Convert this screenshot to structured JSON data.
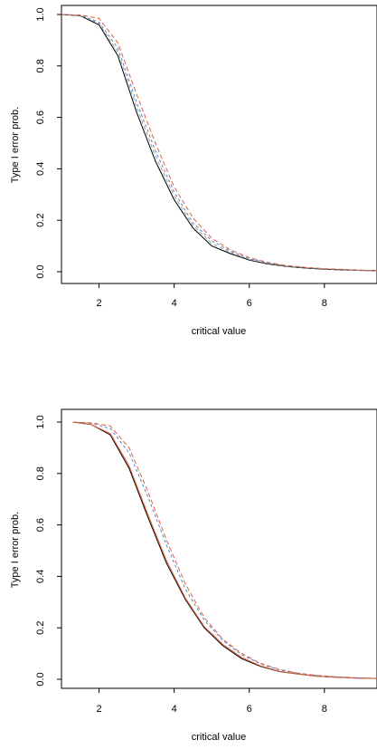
{
  "chart_data": [
    {
      "type": "line",
      "title": "",
      "xlabel": "critical value",
      "ylabel": "Type I error prob.",
      "xlim": [
        1,
        9.4
      ],
      "ylim": [
        0,
        1
      ],
      "xticks": [
        2,
        4,
        6,
        8
      ],
      "yticks": [
        0.0,
        0.2,
        0.4,
        0.6,
        0.8,
        1.0
      ],
      "ytick_labels": [
        "0.0",
        "0.2",
        "0.4",
        "0.6",
        "0.8",
        "1.0"
      ],
      "grid": false,
      "legend": "none",
      "series": [
        {
          "color": "#000000",
          "dash": "solid",
          "x": [
            1.0,
            1.5,
            2.0,
            2.5,
            3.0,
            3.5,
            4.0,
            4.5,
            5.0,
            5.5,
            6.0,
            6.5,
            7.0,
            7.5,
            8.0,
            8.5,
            9.0,
            9.4
          ],
          "y": [
            1.0,
            0.995,
            0.96,
            0.84,
            0.62,
            0.43,
            0.28,
            0.17,
            0.1,
            0.07,
            0.045,
            0.03,
            0.02,
            0.014,
            0.01,
            0.007,
            0.005,
            0.004
          ]
        },
        {
          "color": "#9e9e9e",
          "dash": "4,3",
          "x": [
            1.0,
            1.5,
            2.0,
            2.5,
            3.0,
            3.5,
            4.0,
            4.5,
            5.0,
            5.5,
            6.0,
            6.5,
            7.0,
            7.5,
            8.0,
            8.5,
            9.0,
            9.4
          ],
          "y": [
            1.0,
            0.996,
            0.965,
            0.855,
            0.64,
            0.45,
            0.295,
            0.18,
            0.11,
            0.075,
            0.048,
            0.032,
            0.021,
            0.015,
            0.011,
            0.008,
            0.005,
            0.004
          ]
        },
        {
          "color": "#4a86c8",
          "dash": "3,3",
          "x": [
            1.0,
            1.5,
            2.0,
            2.5,
            3.0,
            3.5,
            4.0,
            4.5,
            5.0,
            5.5,
            6.0,
            6.5,
            7.0,
            7.5,
            8.0,
            8.5,
            9.0,
            9.4
          ],
          "y": [
            1.0,
            0.997,
            0.97,
            0.87,
            0.66,
            0.47,
            0.31,
            0.19,
            0.12,
            0.08,
            0.05,
            0.034,
            0.022,
            0.016,
            0.011,
            0.008,
            0.006,
            0.004
          ]
        },
        {
          "color": "#e0603a",
          "dash": "5,3",
          "x": [
            1.0,
            1.5,
            2.0,
            2.5,
            3.0,
            3.5,
            4.0,
            4.5,
            5.0,
            5.5,
            6.0,
            6.5,
            7.0,
            7.5,
            8.0,
            8.5,
            9.0,
            9.4
          ],
          "y": [
            1.0,
            0.998,
            0.985,
            0.89,
            0.69,
            0.5,
            0.33,
            0.21,
            0.13,
            0.085,
            0.055,
            0.036,
            0.024,
            0.017,
            0.012,
            0.009,
            0.006,
            0.004
          ]
        }
      ]
    },
    {
      "type": "line",
      "title": "",
      "xlabel": "critical value",
      "ylabel": "Type I error prob.",
      "xlim": [
        1,
        9.4
      ],
      "ylim": [
        0,
        1
      ],
      "xticks": [
        2,
        4,
        6,
        8
      ],
      "yticks": [
        0.0,
        0.2,
        0.4,
        0.6,
        0.8,
        1.0
      ],
      "ytick_labels": [
        "0.0",
        "0.2",
        "0.4",
        "0.6",
        "0.8",
        "1.0"
      ],
      "grid": false,
      "legend": "none",
      "series": [
        {
          "color": "#000000",
          "dash": "solid",
          "x": [
            1.3,
            1.8,
            2.3,
            2.8,
            3.3,
            3.8,
            4.3,
            4.8,
            5.3,
            5.8,
            6.3,
            6.8,
            7.3,
            7.8,
            8.3,
            8.8,
            9.4
          ],
          "y": [
            1.0,
            0.99,
            0.95,
            0.82,
            0.63,
            0.45,
            0.31,
            0.2,
            0.13,
            0.08,
            0.05,
            0.03,
            0.02,
            0.012,
            0.008,
            0.005,
            0.003
          ]
        },
        {
          "color": "#e0603a",
          "dash": "solid",
          "x": [
            1.3,
            1.8,
            2.3,
            2.8,
            3.3,
            3.8,
            4.3,
            4.8,
            5.3,
            5.8,
            6.3,
            6.8,
            7.3,
            7.8,
            8.3,
            8.8,
            9.4
          ],
          "y": [
            1.0,
            0.99,
            0.955,
            0.83,
            0.64,
            0.46,
            0.315,
            0.205,
            0.135,
            0.085,
            0.052,
            0.031,
            0.02,
            0.012,
            0.008,
            0.005,
            0.003
          ]
        },
        {
          "color": "#4a86c8",
          "dash": "3,3",
          "x": [
            1.3,
            1.8,
            2.3,
            2.8,
            3.3,
            3.8,
            4.3,
            4.8,
            5.3,
            5.8,
            6.3,
            6.8,
            7.3,
            7.8,
            8.3,
            8.8,
            9.4
          ],
          "y": [
            1.0,
            0.995,
            0.975,
            0.88,
            0.71,
            0.52,
            0.35,
            0.23,
            0.15,
            0.095,
            0.06,
            0.036,
            0.023,
            0.014,
            0.009,
            0.006,
            0.003
          ]
        },
        {
          "color": "#e0603a",
          "dash": "5,3",
          "x": [
            1.3,
            1.8,
            2.3,
            2.8,
            3.3,
            3.8,
            4.3,
            4.8,
            5.3,
            5.8,
            6.3,
            6.8,
            7.3,
            7.8,
            8.3,
            8.8,
            9.4
          ],
          "y": [
            1.0,
            0.997,
            0.985,
            0.9,
            0.73,
            0.54,
            0.37,
            0.24,
            0.155,
            0.1,
            0.062,
            0.038,
            0.024,
            0.015,
            0.01,
            0.006,
            0.003
          ]
        }
      ]
    }
  ]
}
